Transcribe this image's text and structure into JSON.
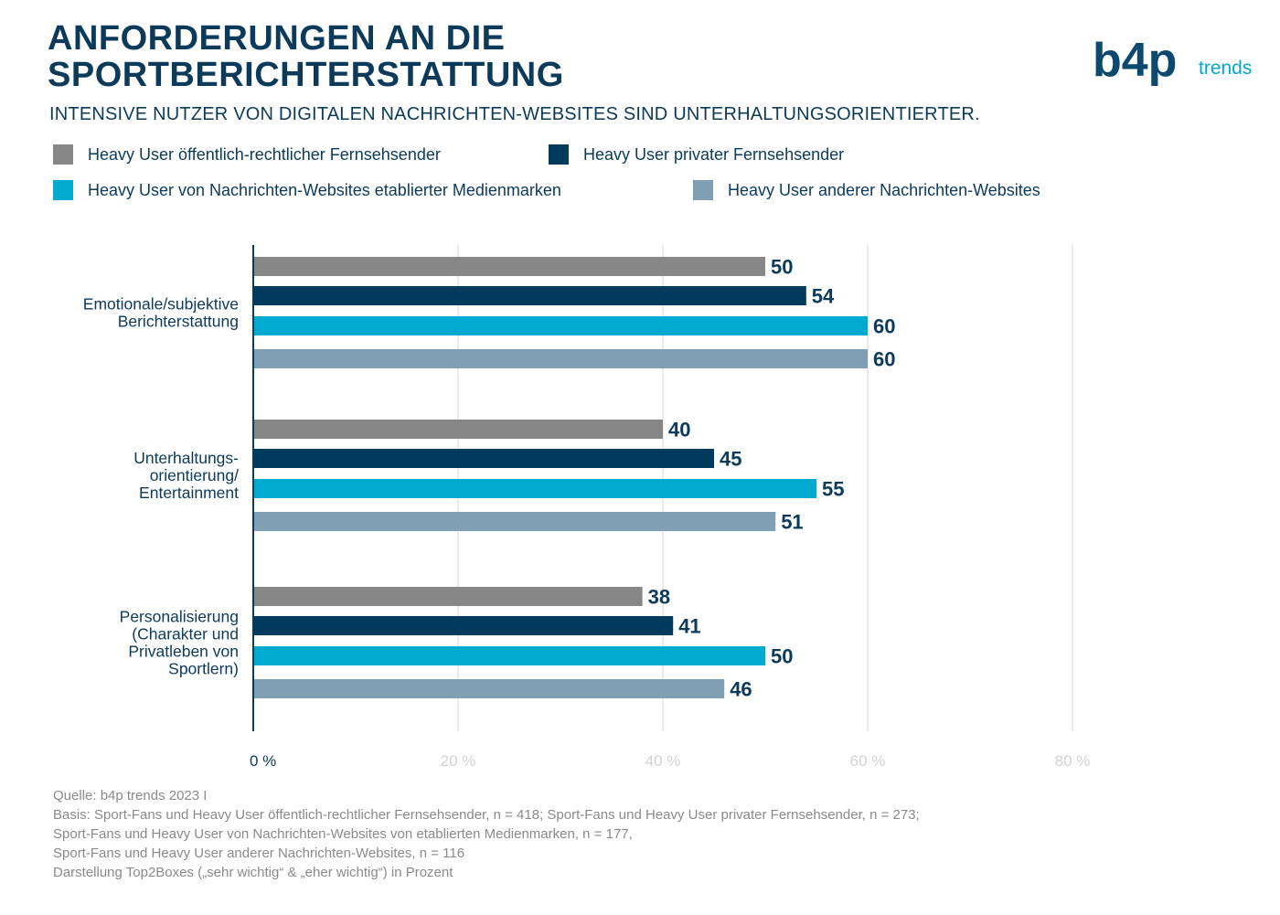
{
  "title_lines": [
    "ANFORDERUNGEN AN DIE",
    "SPORTBERICHTERSTATTUNG"
  ],
  "subtitle": "INTENSIVE NUTZER VON DIGITALEN NACHRICHTEN-WEBSITES SIND UNTERHALTUNGSORIENTIERTER.",
  "logo": {
    "brand": "b4p",
    "suffix": "trends",
    "colors": {
      "dark": "#0b4a6e",
      "accent": "#00a9d0"
    }
  },
  "legend": [
    {
      "label": "Heavy User öffentlich-rechtlicher Fernsehsender",
      "color": "#878787"
    },
    {
      "label": "Heavy User privater Fernsehsender",
      "color": "#003a5c"
    },
    {
      "label": "Heavy User von Nachrichten-Websites etablierter Medienmarken",
      "color": "#00a9d0"
    },
    {
      "label": "Heavy User anderer Nachrichten-Websites",
      "color": "#7fa0b3"
    }
  ],
  "chart_data": {
    "type": "bar",
    "orientation": "horizontal",
    "categories": [
      [
        "Emotionale/subjektive",
        "Berichterstattung"
      ],
      [
        "Unterhaltungs-",
        "orientierung/",
        "Entertainment"
      ],
      [
        "Personalisierung",
        "(Charakter und",
        "Privatleben von",
        "Sportlern)"
      ]
    ],
    "series": [
      {
        "name": "Heavy User öffentlich-rechtlicher Fernsehsender",
        "values": [
          50,
          40,
          38
        ],
        "color": "#878787"
      },
      {
        "name": "Heavy User privater Fernsehsender",
        "values": [
          54,
          45,
          41
        ],
        "color": "#003a5c"
      },
      {
        "name": "Heavy User von Nachrichten-Websites etablierter Medienmarken",
        "values": [
          60,
          55,
          50
        ],
        "color": "#00a9d0"
      },
      {
        "name": "Heavy User anderer Nachrichten-Websites",
        "values": [
          60,
          51,
          46
        ],
        "color": "#7fa0b3"
      }
    ],
    "xticks": [
      {
        "value": 0,
        "label": "0 %"
      },
      {
        "value": 20,
        "label": "20 %"
      },
      {
        "value": 40,
        "label": "40 %"
      },
      {
        "value": 60,
        "label": "60 %"
      },
      {
        "value": 80,
        "label": "80 %"
      }
    ],
    "xlim": [
      0,
      80
    ],
    "grid": true
  },
  "footnotes": [
    "Quelle: b4p trends 2023 I",
    "Basis: Sport-Fans und Heavy User öffentlich-rechtlicher Fernsehsender, n = 418; Sport-Fans und Heavy User privater Fernsehsender, n = 273;",
    "Sport-Fans und Heavy User von Nachrichten-Websites von etablierten Medienmarken, n = 177,",
    "Sport-Fans und Heavy User anderer Nachrichten-Websites, n = 116",
    "Darstellung Top2Boxes („sehr wichtig“ & „eher wichtig“) in Prozent"
  ]
}
